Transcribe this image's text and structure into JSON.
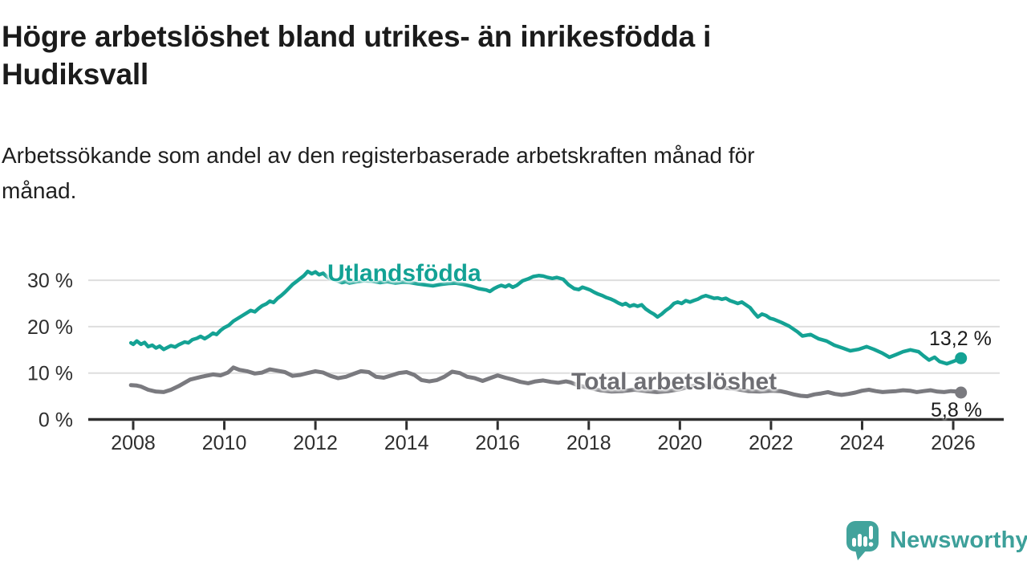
{
  "header": {
    "title_lines": [
      "Högre arbetslöshet bland utrikes- än inrikesfödda i",
      "Hudiksvall"
    ],
    "subtitle_lines": [
      "Arbetssökande som andel av den registerbaserade arbetskraften månad för",
      "månad."
    ]
  },
  "chart_data": {
    "type": "line",
    "title": "Högre arbetslöshet bland utrikes- än inrikesfödda i Hudiksvall",
    "subtitle": "Arbetssökande som andel av den registerbaserade arbetskraften månad för månad.",
    "xlabel": "",
    "ylabel": "",
    "xlim": [
      2007.85,
      2026.45
    ],
    "ylim": [
      0,
      33
    ],
    "grid": "horizontal",
    "legend_position": "inline-labels",
    "x_ticks": [
      2008,
      2010,
      2012,
      2014,
      2016,
      2018,
      2020,
      2022,
      2024,
      2026
    ],
    "y_ticks": [
      {
        "value": 30,
        "label": "30 %"
      },
      {
        "value": 20,
        "label": "20 %"
      },
      {
        "value": 10,
        "label": "10 %"
      },
      {
        "value": 0,
        "label": "0 %"
      }
    ],
    "series": [
      {
        "id": "utlandsfodda",
        "name": "Utlandsfödda",
        "color": "#14a294",
        "end_label": "13,2 %",
        "end_value": 13.2,
        "points": [
          [
            2007.95,
            16.5
          ],
          [
            2008.0,
            16.2
          ],
          [
            2008.08,
            16.9
          ],
          [
            2008.17,
            16.2
          ],
          [
            2008.25,
            16.6
          ],
          [
            2008.33,
            15.7
          ],
          [
            2008.42,
            16.0
          ],
          [
            2008.5,
            15.4
          ],
          [
            2008.58,
            15.8
          ],
          [
            2008.67,
            15.1
          ],
          [
            2008.75,
            15.5
          ],
          [
            2008.83,
            15.9
          ],
          [
            2008.92,
            15.6
          ],
          [
            2009.0,
            16.1
          ],
          [
            2009.13,
            16.7
          ],
          [
            2009.21,
            16.5
          ],
          [
            2009.3,
            17.2
          ],
          [
            2009.4,
            17.5
          ],
          [
            2009.48,
            17.9
          ],
          [
            2009.57,
            17.4
          ],
          [
            2009.67,
            18.0
          ],
          [
            2009.75,
            18.6
          ],
          [
            2009.83,
            18.3
          ],
          [
            2009.92,
            19.2
          ],
          [
            2010.0,
            19.8
          ],
          [
            2010.1,
            20.3
          ],
          [
            2010.2,
            21.2
          ],
          [
            2010.3,
            21.8
          ],
          [
            2010.4,
            22.4
          ],
          [
            2010.5,
            23.0
          ],
          [
            2010.58,
            23.5
          ],
          [
            2010.67,
            23.2
          ],
          [
            2010.75,
            23.9
          ],
          [
            2010.83,
            24.5
          ],
          [
            2010.92,
            24.9
          ],
          [
            2011.0,
            25.5
          ],
          [
            2011.08,
            25.2
          ],
          [
            2011.17,
            26.1
          ],
          [
            2011.25,
            26.7
          ],
          [
            2011.33,
            27.4
          ],
          [
            2011.42,
            28.3
          ],
          [
            2011.5,
            29.1
          ],
          [
            2011.58,
            29.7
          ],
          [
            2011.67,
            30.4
          ],
          [
            2011.75,
            31.0
          ],
          [
            2011.83,
            31.9
          ],
          [
            2011.92,
            31.4
          ],
          [
            2012.0,
            31.8
          ],
          [
            2012.08,
            31.2
          ],
          [
            2012.17,
            31.5
          ],
          [
            2012.25,
            30.8
          ],
          [
            2012.33,
            30.3
          ],
          [
            2012.42,
            30.1
          ],
          [
            2012.5,
            29.8
          ],
          [
            2012.58,
            29.5
          ],
          [
            2012.67,
            29.7
          ],
          [
            2012.75,
            29.4
          ],
          [
            2012.92,
            29.7
          ],
          [
            2013.08,
            29.9
          ],
          [
            2013.25,
            29.8
          ],
          [
            2013.42,
            29.5
          ],
          [
            2013.58,
            29.7
          ],
          [
            2013.75,
            29.4
          ],
          [
            2013.92,
            29.6
          ],
          [
            2014.08,
            29.5
          ],
          [
            2014.25,
            29.2
          ],
          [
            2014.42,
            29.0
          ],
          [
            2014.58,
            28.8
          ],
          [
            2014.75,
            29.1
          ],
          [
            2014.92,
            29.3
          ],
          [
            2015.08,
            29.4
          ],
          [
            2015.25,
            29.1
          ],
          [
            2015.42,
            28.7
          ],
          [
            2015.58,
            28.2
          ],
          [
            2015.75,
            27.9
          ],
          [
            2015.83,
            27.6
          ],
          [
            2015.92,
            28.2
          ],
          [
            2016.0,
            28.6
          ],
          [
            2016.08,
            28.9
          ],
          [
            2016.17,
            28.6
          ],
          [
            2016.25,
            29.0
          ],
          [
            2016.33,
            28.5
          ],
          [
            2016.42,
            28.9
          ],
          [
            2016.55,
            29.9
          ],
          [
            2016.67,
            30.3
          ],
          [
            2016.78,
            30.8
          ],
          [
            2016.9,
            31.0
          ],
          [
            2017.0,
            30.9
          ],
          [
            2017.1,
            30.6
          ],
          [
            2017.2,
            30.4
          ],
          [
            2017.3,
            30.6
          ],
          [
            2017.44,
            30.2
          ],
          [
            2017.56,
            29.0
          ],
          [
            2017.68,
            28.2
          ],
          [
            2017.78,
            28.0
          ],
          [
            2017.86,
            28.5
          ],
          [
            2017.95,
            28.2
          ],
          [
            2018.03,
            27.9
          ],
          [
            2018.12,
            27.4
          ],
          [
            2018.21,
            27.0
          ],
          [
            2018.3,
            26.7
          ],
          [
            2018.38,
            26.3
          ],
          [
            2018.47,
            26.0
          ],
          [
            2018.56,
            25.6
          ],
          [
            2018.65,
            25.1
          ],
          [
            2018.74,
            24.7
          ],
          [
            2018.81,
            25.0
          ],
          [
            2018.9,
            24.4
          ],
          [
            2018.99,
            24.7
          ],
          [
            2019.07,
            24.4
          ],
          [
            2019.16,
            24.7
          ],
          [
            2019.25,
            23.8
          ],
          [
            2019.34,
            23.2
          ],
          [
            2019.43,
            22.7
          ],
          [
            2019.51,
            22.1
          ],
          [
            2019.6,
            22.7
          ],
          [
            2019.69,
            23.5
          ],
          [
            2019.78,
            24.1
          ],
          [
            2019.87,
            25.0
          ],
          [
            2019.95,
            25.3
          ],
          [
            2020.04,
            25.0
          ],
          [
            2020.13,
            25.6
          ],
          [
            2020.22,
            25.3
          ],
          [
            2020.3,
            25.6
          ],
          [
            2020.39,
            25.9
          ],
          [
            2020.48,
            26.4
          ],
          [
            2020.57,
            26.7
          ],
          [
            2020.66,
            26.4
          ],
          [
            2020.75,
            26.1
          ],
          [
            2020.83,
            26.2
          ],
          [
            2020.92,
            25.9
          ],
          [
            2021.01,
            26.1
          ],
          [
            2021.1,
            25.6
          ],
          [
            2021.19,
            25.3
          ],
          [
            2021.27,
            25.0
          ],
          [
            2021.36,
            25.3
          ],
          [
            2021.45,
            24.7
          ],
          [
            2021.54,
            24.1
          ],
          [
            2021.63,
            23.0
          ],
          [
            2021.71,
            22.1
          ],
          [
            2021.8,
            22.7
          ],
          [
            2021.89,
            22.4
          ],
          [
            2021.98,
            21.8
          ],
          [
            2022.06,
            21.6
          ],
          [
            2022.23,
            20.9
          ],
          [
            2022.4,
            20.1
          ],
          [
            2022.58,
            18.9
          ],
          [
            2022.69,
            18.0
          ],
          [
            2022.87,
            18.3
          ],
          [
            2023.04,
            17.4
          ],
          [
            2023.22,
            16.9
          ],
          [
            2023.39,
            16.0
          ],
          [
            2023.57,
            15.4
          ],
          [
            2023.74,
            14.8
          ],
          [
            2023.92,
            15.1
          ],
          [
            2024.1,
            15.7
          ],
          [
            2024.26,
            15.1
          ],
          [
            2024.44,
            14.3
          ],
          [
            2024.6,
            13.4
          ],
          [
            2024.75,
            14.0
          ],
          [
            2024.9,
            14.6
          ],
          [
            2025.06,
            15.0
          ],
          [
            2025.24,
            14.6
          ],
          [
            2025.35,
            13.7
          ],
          [
            2025.47,
            12.8
          ],
          [
            2025.59,
            13.4
          ],
          [
            2025.7,
            12.5
          ],
          [
            2025.86,
            12.0
          ],
          [
            2026.0,
            12.5
          ],
          [
            2026.17,
            13.2
          ]
        ]
      },
      {
        "id": "total",
        "name": "Total arbetslöshet",
        "color": "#7a7a7f",
        "end_label": "5,8 %",
        "end_value": 5.8,
        "points": [
          [
            2007.95,
            7.4
          ],
          [
            2008.08,
            7.3
          ],
          [
            2008.17,
            7.1
          ],
          [
            2008.33,
            6.4
          ],
          [
            2008.5,
            6.0
          ],
          [
            2008.67,
            5.9
          ],
          [
            2008.83,
            6.4
          ],
          [
            2009.0,
            7.2
          ],
          [
            2009.25,
            8.6
          ],
          [
            2009.5,
            9.2
          ],
          [
            2009.75,
            9.7
          ],
          [
            2009.92,
            9.5
          ],
          [
            2010.08,
            10.1
          ],
          [
            2010.2,
            11.2
          ],
          [
            2010.33,
            10.7
          ],
          [
            2010.5,
            10.4
          ],
          [
            2010.67,
            9.9
          ],
          [
            2010.83,
            10.1
          ],
          [
            2011.0,
            10.8
          ],
          [
            2011.17,
            10.5
          ],
          [
            2011.33,
            10.2
          ],
          [
            2011.5,
            9.4
          ],
          [
            2011.67,
            9.6
          ],
          [
            2011.83,
            10.0
          ],
          [
            2012.0,
            10.4
          ],
          [
            2012.17,
            10.1
          ],
          [
            2012.33,
            9.4
          ],
          [
            2012.5,
            8.9
          ],
          [
            2012.67,
            9.2
          ],
          [
            2012.83,
            9.8
          ],
          [
            2013.0,
            10.4
          ],
          [
            2013.17,
            10.2
          ],
          [
            2013.33,
            9.2
          ],
          [
            2013.5,
            9.0
          ],
          [
            2013.67,
            9.5
          ],
          [
            2013.83,
            10.0
          ],
          [
            2014.0,
            10.2
          ],
          [
            2014.17,
            9.6
          ],
          [
            2014.33,
            8.5
          ],
          [
            2014.5,
            8.2
          ],
          [
            2014.67,
            8.5
          ],
          [
            2014.83,
            9.2
          ],
          [
            2015.0,
            10.3
          ],
          [
            2015.17,
            10.0
          ],
          [
            2015.33,
            9.2
          ],
          [
            2015.5,
            8.9
          ],
          [
            2015.67,
            8.3
          ],
          [
            2015.83,
            8.9
          ],
          [
            2016.0,
            9.5
          ],
          [
            2016.17,
            9.0
          ],
          [
            2016.33,
            8.6
          ],
          [
            2016.5,
            8.1
          ],
          [
            2016.67,
            7.8
          ],
          [
            2016.83,
            8.2
          ],
          [
            2017.0,
            8.4
          ],
          [
            2017.17,
            8.1
          ],
          [
            2017.33,
            7.9
          ],
          [
            2017.5,
            8.2
          ],
          [
            2017.6,
            8.0
          ],
          [
            2017.75,
            7.4
          ],
          [
            2018.0,
            6.8
          ],
          [
            2018.25,
            6.3
          ],
          [
            2018.5,
            6.0
          ],
          [
            2018.75,
            6.1
          ],
          [
            2019.0,
            6.4
          ],
          [
            2019.25,
            6.1
          ],
          [
            2019.5,
            5.9
          ],
          [
            2019.75,
            6.1
          ],
          [
            2020.0,
            6.5
          ],
          [
            2020.25,
            7.2
          ],
          [
            2020.5,
            7.4
          ],
          [
            2020.75,
            7.1
          ],
          [
            2021.0,
            6.8
          ],
          [
            2021.25,
            6.5
          ],
          [
            2021.5,
            6.1
          ],
          [
            2021.75,
            6.0
          ],
          [
            2022.0,
            6.2
          ],
          [
            2022.2,
            6.1
          ],
          [
            2022.35,
            5.8
          ],
          [
            2022.5,
            5.4
          ],
          [
            2022.65,
            5.1
          ],
          [
            2022.8,
            5.0
          ],
          [
            2022.95,
            5.4
          ],
          [
            2023.1,
            5.6
          ],
          [
            2023.25,
            5.9
          ],
          [
            2023.4,
            5.5
          ],
          [
            2023.55,
            5.3
          ],
          [
            2023.7,
            5.5
          ],
          [
            2023.85,
            5.8
          ],
          [
            2024.0,
            6.2
          ],
          [
            2024.15,
            6.4
          ],
          [
            2024.3,
            6.1
          ],
          [
            2024.45,
            5.9
          ],
          [
            2024.6,
            6.0
          ],
          [
            2024.75,
            6.1
          ],
          [
            2024.9,
            6.3
          ],
          [
            2025.05,
            6.2
          ],
          [
            2025.2,
            5.9
          ],
          [
            2025.35,
            6.1
          ],
          [
            2025.5,
            6.3
          ],
          [
            2025.65,
            6.0
          ],
          [
            2025.8,
            5.9
          ],
          [
            2025.95,
            6.1
          ],
          [
            2026.08,
            6.0
          ],
          [
            2026.17,
            5.8
          ]
        ]
      }
    ]
  },
  "branding": {
    "wordmark": "Newsworthy",
    "logo_color": "#42a39c",
    "wordmark_color": "#3da09a",
    "icon": "bar-chart-speech-bubble-icon"
  },
  "colors": {
    "accent_teal": "#14a294",
    "series_gray": "#7a7a7f",
    "gridline": "#dedede",
    "axis": "#2f2f2f",
    "text_dark": "#1b1b1b"
  }
}
